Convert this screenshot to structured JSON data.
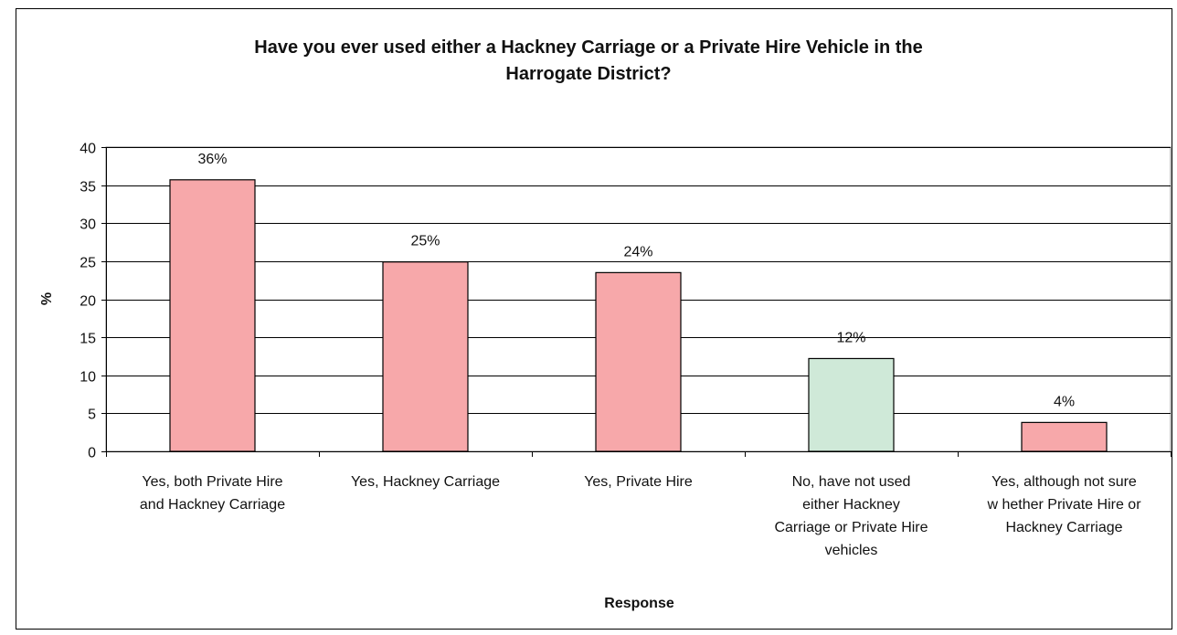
{
  "chart_data": {
    "type": "bar",
    "title": "Have you ever used either a Hackney Carriage or a Private Hire Vehicle in the\nHarrogate District?",
    "xlabel": "Response",
    "ylabel": "%",
    "ylim": [
      0,
      40
    ],
    "yticks": [
      "0",
      "5",
      "10",
      "15",
      "20",
      "25",
      "30",
      "35",
      "40"
    ],
    "grid": true,
    "categories": [
      [
        "Yes, both Private Hire",
        "and Hackney Carriage"
      ],
      [
        "Yes, Hackney Carriage"
      ],
      [
        "Yes, Private Hire"
      ],
      [
        "No, have not used",
        "either Hackney",
        "Carriage or Private Hire",
        "vehicles"
      ],
      [
        "Yes, although not sure",
        "w hether Private Hire or",
        "Hackney Carriage"
      ]
    ],
    "values": [
      35.7,
      24.9,
      23.5,
      12.2,
      3.8
    ],
    "data_labels": [
      "36%",
      "25%",
      "24%",
      "12%",
      "4%"
    ],
    "bar_colors": [
      "#f7a8aa",
      "#f7a8aa",
      "#f7a8aa",
      "#cfe9d8",
      "#f7a8aa"
    ]
  }
}
